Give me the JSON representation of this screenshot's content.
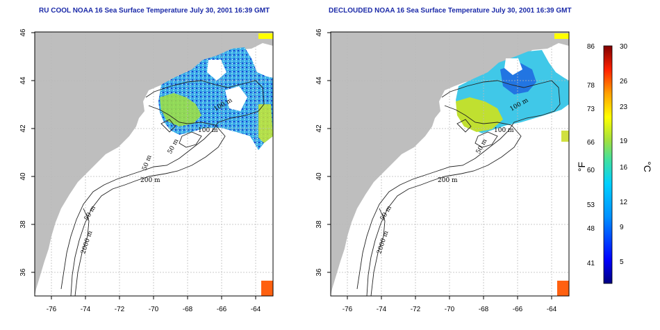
{
  "maps": {
    "left": {
      "title": "RU COOL NOAA 16 Sea Surface Temperature July 30, 2001 16:39 GMT"
    },
    "right": {
      "title": "DECLOUDED NOAA 16 Sea Surface Temperature July 30, 2001 16:39 GMT"
    }
  },
  "axes": {
    "x_ticks": [
      "-76",
      "-74",
      "-72",
      "-70",
      "-68",
      "-66",
      "-64"
    ],
    "y_ticks": [
      "46",
      "44",
      "42",
      "40",
      "38",
      "36"
    ]
  },
  "contours": {
    "left": [
      "50 m",
      "100 m",
      "100 m",
      "50 m",
      "200 m",
      "50 m",
      "2000 m"
    ],
    "right": [
      "100 m",
      "100 m",
      "50 m",
      "200 m",
      "50 m",
      "2000 m"
    ]
  },
  "colorbar": {
    "fahrenheit_ticks": [
      "86",
      "78",
      "73",
      "66",
      "60",
      "53",
      "48",
      "41"
    ],
    "celsius_ticks": [
      "30",
      "26",
      "23",
      "19",
      "16",
      "12",
      "9",
      "5"
    ],
    "fahrenheit_unit": "°F",
    "celsius_unit": "°C"
  },
  "colors": {
    "land": "#bebebe",
    "ocean": "#ffffff",
    "title": "#1b2aa8",
    "sst_palette": [
      "#000080",
      "#0000ff",
      "#0090ff",
      "#00d0ff",
      "#40e0a0",
      "#a0e040",
      "#ffff00",
      "#ffa000",
      "#ff2000",
      "#800000"
    ]
  }
}
